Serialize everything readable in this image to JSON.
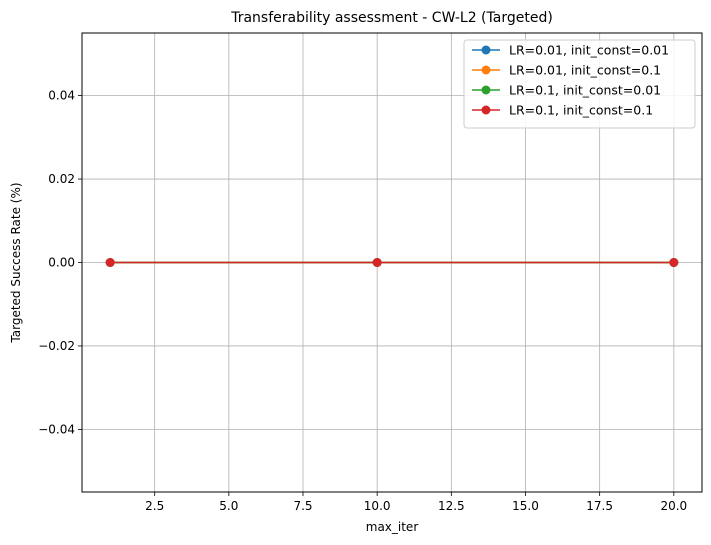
{
  "chart_data": {
    "type": "line",
    "title": "Transferability assessment - CW-L2 (Targeted)",
    "xlabel": "max_iter",
    "ylabel": "Targeted Success Rate (%)",
    "x": [
      1,
      10,
      20
    ],
    "xlim": [
      0.05,
      20.95
    ],
    "ylim": [
      -0.055,
      0.055
    ],
    "xticks": [
      2.5,
      5.0,
      7.5,
      10.0,
      12.5,
      15.0,
      17.5,
      20.0
    ],
    "xtick_labels": [
      "2.5",
      "5.0",
      "7.5",
      "10.0",
      "12.5",
      "15.0",
      "17.5",
      "20.0"
    ],
    "yticks": [
      -0.04,
      -0.02,
      0.0,
      0.02,
      0.04
    ],
    "ytick_labels": [
      "−0.04",
      "−0.02",
      "0.00",
      "0.02",
      "0.04"
    ],
    "grid": true,
    "legend_position": "top-right",
    "marker": "circle",
    "series": [
      {
        "name": "LR=0.01, init_const=0.01",
        "values": [
          0,
          0,
          0
        ],
        "color": "#1f77b4"
      },
      {
        "name": "LR=0.01, init_const=0.1",
        "values": [
          0,
          0,
          0
        ],
        "color": "#ff7f0e"
      },
      {
        "name": "LR=0.1, init_const=0.01",
        "values": [
          0,
          0,
          0
        ],
        "color": "#2ca02c"
      },
      {
        "name": "LR=0.1, init_const=0.1",
        "values": [
          0,
          0,
          0
        ],
        "color": "#d62728"
      }
    ]
  }
}
